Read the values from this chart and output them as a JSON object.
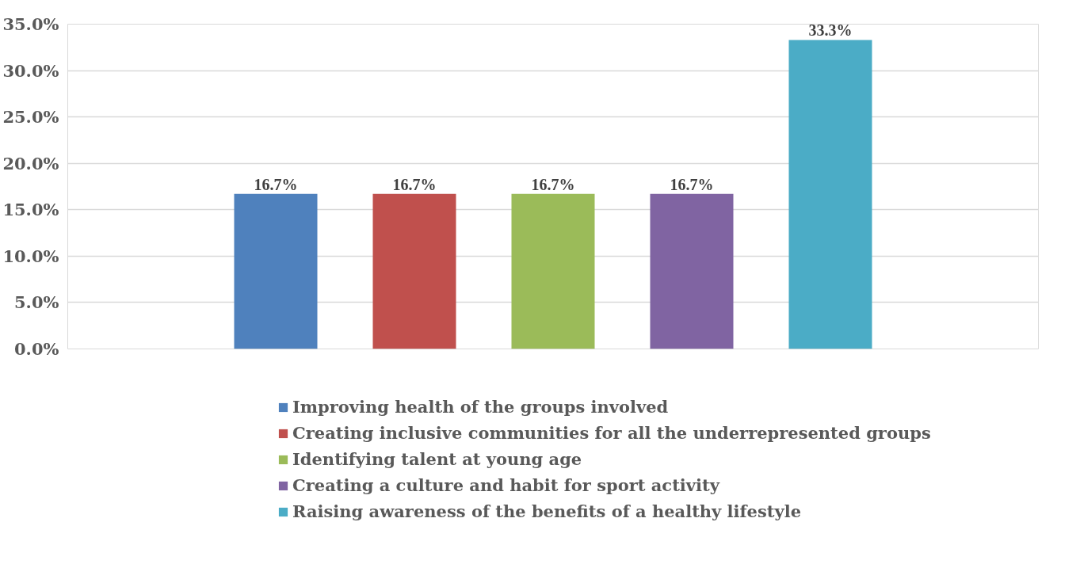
{
  "chart_data": {
    "type": "bar",
    "categories": [
      null
    ],
    "series": [
      {
        "name": "Improving health of the groups involved",
        "color": "#4f81bd",
        "values": [
          16.7
        ],
        "value_labels": [
          "16.7%"
        ]
      },
      {
        "name": "Creating inclusive communities for all the underrepresented groups",
        "color": "#c0504d",
        "values": [
          16.7
        ],
        "value_labels": [
          "16.7%"
        ]
      },
      {
        "name": "Identifying talent at young age",
        "color": "#9bbb59",
        "values": [
          16.7
        ],
        "value_labels": [
          "16.7%"
        ]
      },
      {
        "name": "Creating a culture and habit for sport activity",
        "color": "#8064a2",
        "values": [
          16.7
        ],
        "value_labels": [
          "16.7%"
        ]
      },
      {
        "name": "Raising awareness of the benefits of a healthy lifestyle",
        "color": "#4bacc6",
        "values": [
          33.3
        ],
        "value_labels": [
          "33.3%"
        ]
      }
    ],
    "ylim": [
      0,
      35
    ],
    "yticks": [
      {
        "value": 0,
        "label": "0.0%"
      },
      {
        "value": 5,
        "label": "5.0%"
      },
      {
        "value": 10,
        "label": "10.0%"
      },
      {
        "value": 15,
        "label": "15.0%"
      },
      {
        "value": 20,
        "label": "20.0%"
      },
      {
        "value": 25,
        "label": "25.0%"
      },
      {
        "value": 30,
        "label": "30.0%"
      },
      {
        "value": 35,
        "label": "35.0%"
      }
    ],
    "grid": "y",
    "legend": "bottom"
  }
}
